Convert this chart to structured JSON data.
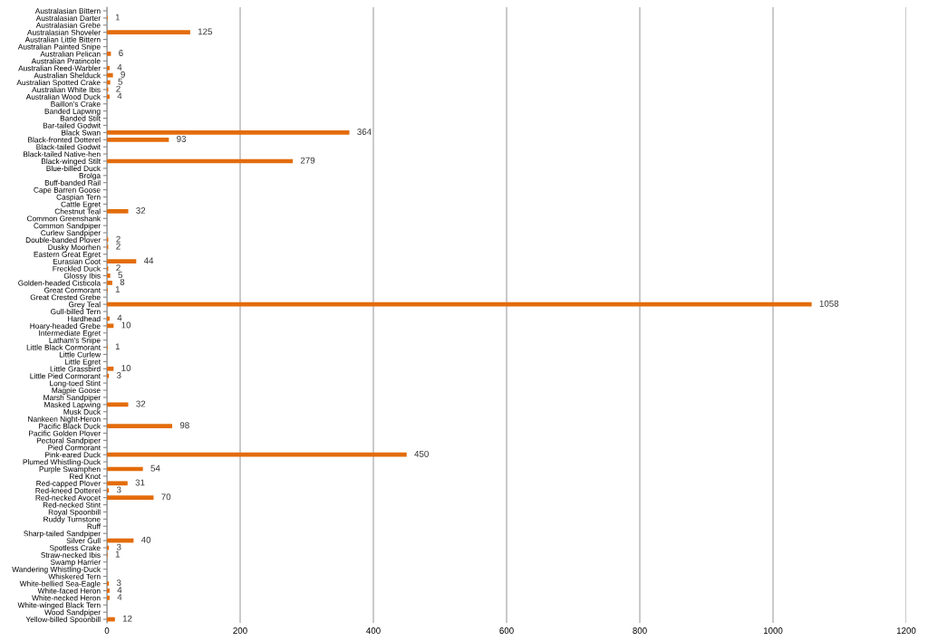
{
  "chart_data": {
    "type": "bar",
    "orientation": "horizontal",
    "color": "#e36c0a",
    "data_labels": true,
    "grid": "x",
    "xlim": [
      0,
      1200
    ],
    "xticks": [
      0,
      200,
      400,
      600,
      800,
      1000,
      1200
    ],
    "categories": [
      "Australasian Bittern",
      "Australasian Darter",
      "Australasian Grebe",
      "Australasian Shoveler",
      "Australian Little Bittern",
      "Australian Painted Snipe",
      "Australian Pelican",
      "Australian Pratincole",
      "Australian Reed-Warbler",
      "Australian Shelduck",
      "Australian Spotted Crake",
      "Australian White Ibis",
      "Australian Wood Duck",
      "Baillon's Crake",
      "Banded Lapwing",
      "Banded Stilt",
      "Bar-tailed Godwit",
      "Black Swan",
      "Black-fronted Dotterel",
      "Black-tailed Godwit",
      "Black-tailed Native-hen",
      "Black-winged Stilt",
      "Blue-billed Duck",
      "Brolga",
      "Buff-banded Rail",
      "Cape Barren Goose",
      "Caspian Tern",
      "Cattle Egret",
      "Chestnut Teal",
      "Common Greenshank",
      "Common Sandpiper",
      "Curlew Sandpiper",
      "Double-banded Plover",
      "Dusky Moorhen",
      "Eastern Great Egret",
      "Eurasian Coot",
      "Freckled Duck",
      "Glossy Ibis",
      "Golden-headed Cisticola",
      "Great Cormorant",
      "Great Crested Grebe",
      "Grey Teal",
      "Gull-billed Tern",
      "Hardhead",
      "Hoary-headed Grebe",
      "Intermediate Egret",
      "Latham's Snipe",
      "Little Black Cormorant",
      "Little Curlew",
      "Little Egret",
      "Little Grassbird",
      "Little Pied Cormorant",
      "Long-toed Stint",
      "Magpie Goose",
      "Marsh Sandpiper",
      "Masked Lapwing",
      "Musk Duck",
      "Nankeen Night-Heron",
      "Pacific Black Duck",
      "Pacific Golden Plover",
      "Pectoral Sandpiper",
      "Pied Cormorant",
      "Pink-eared Duck",
      "Plumed Whistling-Duck",
      "Purple Swamphen",
      "Red Knot",
      "Red-capped Plover",
      "Red-kneed Dotterel",
      "Red-necked Avocet",
      "Red-necked Stint",
      "Royal Spoonbill",
      "Ruddy Turnstone",
      "Ruff",
      "Sharp-tailed Sandpiper",
      "Silver Gull",
      "Spotless Crake",
      "Straw-necked Ibis",
      "Swamp Harrier",
      "Wandering Whistling-Duck",
      "Whiskered Tern",
      "White-bellied Sea-Eagle",
      "White-faced Heron",
      "White-necked Heron",
      "White-winged Black Tern",
      "Wood Sandpiper",
      "Yellow-billed Spoonbill"
    ],
    "values": [
      null,
      1,
      null,
      125,
      null,
      null,
      6,
      null,
      4,
      9,
      5,
      2,
      4,
      null,
      null,
      null,
      null,
      364,
      93,
      null,
      null,
      279,
      null,
      null,
      null,
      null,
      null,
      null,
      32,
      null,
      null,
      null,
      2,
      2,
      null,
      44,
      2,
      5,
      8,
      1,
      null,
      1058,
      null,
      4,
      10,
      null,
      null,
      1,
      null,
      null,
      10,
      3,
      null,
      null,
      null,
      32,
      null,
      null,
      98,
      null,
      null,
      null,
      450,
      null,
      54,
      null,
      31,
      3,
      70,
      null,
      null,
      null,
      null,
      null,
      40,
      3,
      1,
      null,
      null,
      null,
      3,
      4,
      4,
      null,
      null,
      12
    ]
  }
}
